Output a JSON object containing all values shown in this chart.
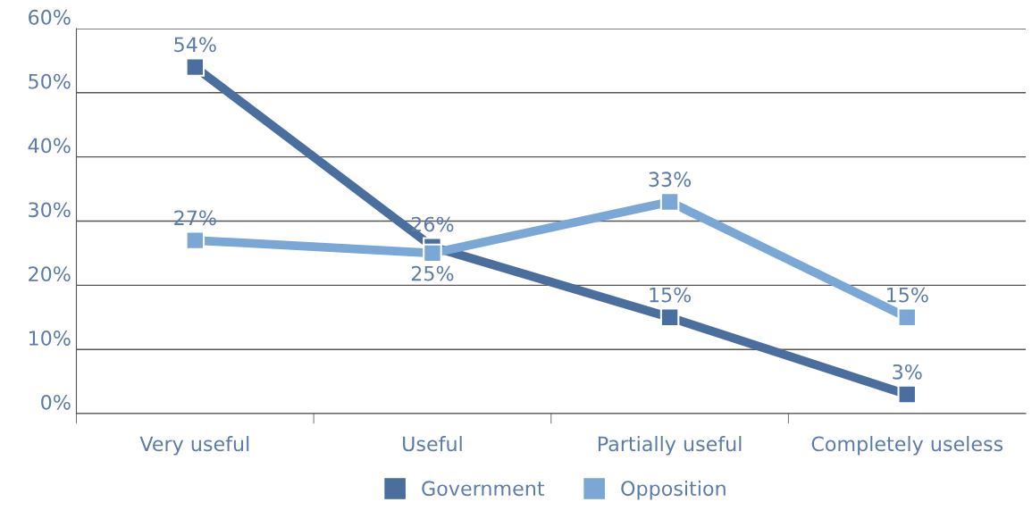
{
  "chart_data": {
    "type": "line",
    "categories": [
      "Very useful",
      "Useful",
      "Partially useful",
      "Completely useless"
    ],
    "series": [
      {
        "name": "Government",
        "color": "#4a6f9f",
        "values": [
          54,
          26,
          15,
          3
        ],
        "value_labels": [
          "54%",
          "26%",
          "15%",
          "3%"
        ]
      },
      {
        "name": "Opposition",
        "color": "#7ba7d7",
        "values": [
          27,
          25,
          33,
          15
        ],
        "value_labels": [
          "27%",
          "25%",
          "33%",
          "15%"
        ]
      }
    ],
    "ylim": [
      0,
      60
    ],
    "yticks": [
      {
        "value": 0,
        "label": "0%"
      },
      {
        "value": 10,
        "label": "10%"
      },
      {
        "value": 20,
        "label": "20%"
      },
      {
        "value": 30,
        "label": "30%"
      },
      {
        "value": 40,
        "label": "40%"
      },
      {
        "value": 50,
        "label": "50%"
      },
      {
        "value": 60,
        "label": "60%"
      }
    ],
    "grid": "y",
    "legend": "bottom",
    "marker": "square",
    "line_style": "solid"
  }
}
